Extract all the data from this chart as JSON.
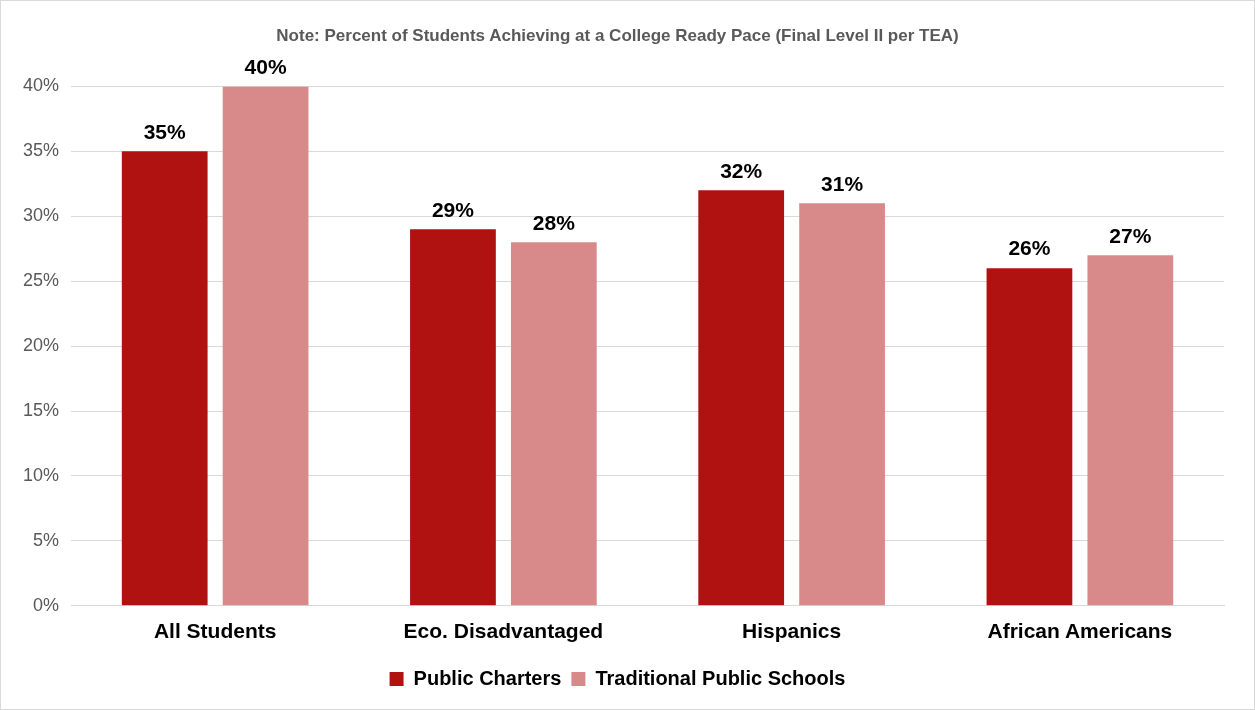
{
  "chart_data": {
    "type": "bar",
    "title": "Note: Percent of Students Achieving at a College Ready Pace (Final Level II per TEA)",
    "categories": [
      "All Students",
      "Eco. Disadvantaged",
      "Hispanics",
      "African Americans"
    ],
    "series": [
      {
        "name": "Public Charters",
        "color": "#b01212",
        "values": [
          35,
          29,
          32,
          26
        ],
        "value_labels": [
          "35%",
          "29%",
          "32%",
          "26%"
        ]
      },
      {
        "name": "Traditional Public Schools",
        "color": "#d88a8a",
        "values": [
          40,
          28,
          31,
          27
        ],
        "value_labels": [
          "40%",
          "28%",
          "31%",
          "27%"
        ]
      }
    ],
    "ylim": [
      0,
      40
    ],
    "yticks": [
      {
        "value": 0,
        "label": "0%"
      },
      {
        "value": 5,
        "label": "5%"
      },
      {
        "value": 10,
        "label": "10%"
      },
      {
        "value": 15,
        "label": "15%"
      },
      {
        "value": 20,
        "label": "20%"
      },
      {
        "value": 25,
        "label": "25%"
      },
      {
        "value": 30,
        "label": "30%"
      },
      {
        "value": 35,
        "label": "35%"
      },
      {
        "value": 40,
        "label": "40%"
      }
    ],
    "grid": "y",
    "legend": "bottom"
  }
}
